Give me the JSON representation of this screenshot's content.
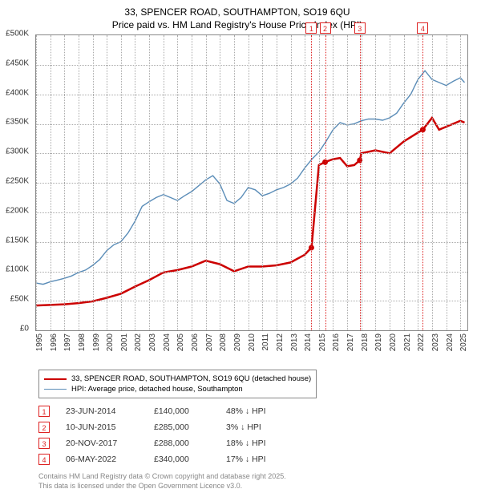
{
  "title": {
    "line1": "33, SPENCER ROAD, SOUTHAMPTON, SO19 6QU",
    "line2": "Price paid vs. HM Land Registry's House Price Index (HPI)",
    "fontsize": 12
  },
  "chart": {
    "type": "line",
    "xlim": [
      1995,
      2025.5
    ],
    "ylim": [
      0,
      500000
    ],
    "ytick_step": 50000,
    "yticks": [
      "£0",
      "£50K",
      "£100K",
      "£150K",
      "£200K",
      "£250K",
      "£300K",
      "£350K",
      "£400K",
      "£450K",
      "£500K"
    ],
    "xticks": [
      1995,
      1996,
      1997,
      1998,
      1999,
      2000,
      2001,
      2002,
      2003,
      2004,
      2005,
      2006,
      2007,
      2008,
      2009,
      2010,
      2011,
      2012,
      2013,
      2014,
      2015,
      2016,
      2017,
      2018,
      2019,
      2020,
      2021,
      2022,
      2023,
      2024,
      2025
    ],
    "grid_color": "#aaaaaa",
    "background_color": "#ffffff",
    "series": [
      {
        "name": "33, SPENCER ROAD, SOUTHAMPTON, SO19 6QU (detached house)",
        "color": "#cc0000",
        "line_width": 2.5,
        "data": [
          [
            1995,
            42000
          ],
          [
            1996,
            43000
          ],
          [
            1997,
            44000
          ],
          [
            1998,
            46000
          ],
          [
            1999,
            49000
          ],
          [
            2000,
            55000
          ],
          [
            2001,
            62000
          ],
          [
            2002,
            74000
          ],
          [
            2003,
            85000
          ],
          [
            2004,
            98000
          ],
          [
            2005,
            102000
          ],
          [
            2006,
            108000
          ],
          [
            2007,
            118000
          ],
          [
            2008,
            112000
          ],
          [
            2009,
            100000
          ],
          [
            2010,
            108000
          ],
          [
            2011,
            108000
          ],
          [
            2012,
            110000
          ],
          [
            2013,
            115000
          ],
          [
            2014,
            128000
          ],
          [
            2014.47,
            140000
          ],
          [
            2014.48,
            140000
          ],
          [
            2015.0,
            280000
          ],
          [
            2015.44,
            285000
          ],
          [
            2016,
            290000
          ],
          [
            2016.5,
            292000
          ],
          [
            2017,
            278000
          ],
          [
            2017.5,
            280000
          ],
          [
            2017.89,
            288000
          ],
          [
            2018,
            300000
          ],
          [
            2019,
            305000
          ],
          [
            2020,
            300000
          ],
          [
            2021,
            320000
          ],
          [
            2022,
            335000
          ],
          [
            2022.35,
            340000
          ],
          [
            2023,
            360000
          ],
          [
            2023.5,
            340000
          ],
          [
            2024,
            345000
          ],
          [
            2025,
            355000
          ],
          [
            2025.3,
            352000
          ]
        ],
        "markers": [
          {
            "x": 2014.47,
            "y": 140000
          },
          {
            "x": 2015.44,
            "y": 285000
          },
          {
            "x": 2017.89,
            "y": 288000
          },
          {
            "x": 2022.35,
            "y": 340000
          }
        ]
      },
      {
        "name": "HPI: Average price, detached house, Southampton",
        "color": "#5b8db8",
        "line_width": 1.4,
        "data": [
          [
            1995,
            80000
          ],
          [
            1995.5,
            78000
          ],
          [
            1996,
            82000
          ],
          [
            1996.5,
            85000
          ],
          [
            1997,
            88000
          ],
          [
            1997.5,
            92000
          ],
          [
            1998,
            98000
          ],
          [
            1998.5,
            102000
          ],
          [
            1999,
            110000
          ],
          [
            1999.5,
            120000
          ],
          [
            2000,
            135000
          ],
          [
            2000.5,
            145000
          ],
          [
            2001,
            150000
          ],
          [
            2001.5,
            165000
          ],
          [
            2002,
            185000
          ],
          [
            2002.5,
            210000
          ],
          [
            2003,
            218000
          ],
          [
            2003.5,
            225000
          ],
          [
            2004,
            230000
          ],
          [
            2004.5,
            225000
          ],
          [
            2005,
            220000
          ],
          [
            2005.5,
            228000
          ],
          [
            2006,
            235000
          ],
          [
            2006.5,
            245000
          ],
          [
            2007,
            255000
          ],
          [
            2007.5,
            262000
          ],
          [
            2008,
            248000
          ],
          [
            2008.5,
            220000
          ],
          [
            2009,
            215000
          ],
          [
            2009.5,
            225000
          ],
          [
            2010,
            242000
          ],
          [
            2010.5,
            238000
          ],
          [
            2011,
            228000
          ],
          [
            2011.5,
            232000
          ],
          [
            2012,
            238000
          ],
          [
            2012.5,
            242000
          ],
          [
            2013,
            248000
          ],
          [
            2013.5,
            258000
          ],
          [
            2014,
            275000
          ],
          [
            2014.5,
            290000
          ],
          [
            2015,
            302000
          ],
          [
            2015.5,
            320000
          ],
          [
            2016,
            340000
          ],
          [
            2016.5,
            352000
          ],
          [
            2017,
            348000
          ],
          [
            2017.5,
            350000
          ],
          [
            2018,
            355000
          ],
          [
            2018.5,
            358000
          ],
          [
            2019,
            358000
          ],
          [
            2019.5,
            356000
          ],
          [
            2020,
            360000
          ],
          [
            2020.5,
            368000
          ],
          [
            2021,
            385000
          ],
          [
            2021.5,
            400000
          ],
          [
            2022,
            425000
          ],
          [
            2022.5,
            440000
          ],
          [
            2023,
            425000
          ],
          [
            2023.5,
            420000
          ],
          [
            2024,
            415000
          ],
          [
            2024.5,
            422000
          ],
          [
            2025,
            428000
          ],
          [
            2025.3,
            420000
          ]
        ]
      }
    ],
    "event_markers": [
      {
        "n": "1",
        "x": 2014.47
      },
      {
        "n": "2",
        "x": 2015.44
      },
      {
        "n": "3",
        "x": 2017.89
      },
      {
        "n": "4",
        "x": 2022.35
      }
    ]
  },
  "legend": {
    "items": [
      {
        "label": "33, SPENCER ROAD, SOUTHAMPTON, SO19 6QU (detached house)",
        "color": "#cc0000",
        "width": 2.5
      },
      {
        "label": "HPI: Average price, detached house, Southampton",
        "color": "#5b8db8",
        "width": 1.4
      }
    ]
  },
  "transactions": [
    {
      "n": "1",
      "date": "23-JUN-2014",
      "price": "£140,000",
      "diff": "48% ↓ HPI"
    },
    {
      "n": "2",
      "date": "10-JUN-2015",
      "price": "£285,000",
      "diff": "3% ↓ HPI"
    },
    {
      "n": "3",
      "date": "20-NOV-2017",
      "price": "£288,000",
      "diff": "18% ↓ HPI"
    },
    {
      "n": "4",
      "date": "06-MAY-2022",
      "price": "£340,000",
      "diff": "17% ↓ HPI"
    }
  ],
  "footnote": {
    "line1": "Contains HM Land Registry data © Crown copyright and database right 2025.",
    "line2": "This data is licensed under the Open Government Licence v3.0."
  }
}
